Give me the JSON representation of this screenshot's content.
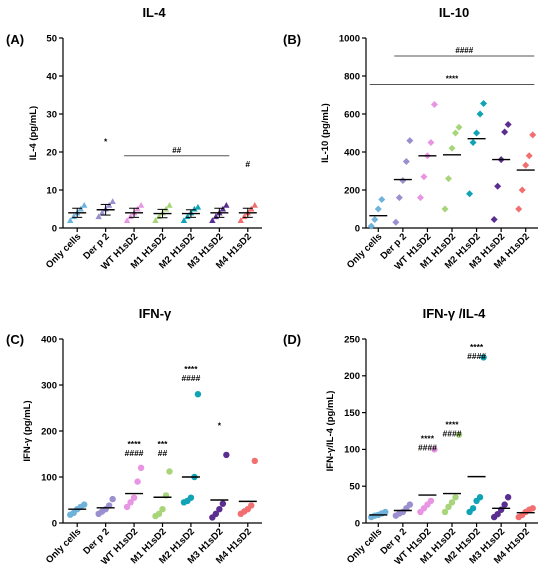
{
  "colors": {
    "Only cells": "#6fb2da",
    "Der p 2": "#9b8fd0",
    "WT H1sD2": "#e895e3",
    "M1 H1sD2": "#a8d57a",
    "M2 H1sD2": "#10a3b5",
    "M3 H1sD2": "#5a2d91",
    "M4 H1sD2": "#f26f6f"
  },
  "chart_data": [
    {
      "id": "A",
      "label": "(A)",
      "type": "scatter",
      "title": "IL-4",
      "ylabel": "IL-4 (pg/mL)",
      "ylim": [
        0,
        50
      ],
      "yticks": [
        0,
        10,
        20,
        30,
        40,
        50
      ],
      "categories": [
        "Only cells",
        "Der p 2",
        "WT H1sD2",
        "M1 H1sD2",
        "M2 H1sD2",
        "M3 H1sD2",
        "M4 H1sD2"
      ],
      "marker": "triangle",
      "error_bars": true,
      "groups": [
        {
          "name": "Only cells",
          "points": [
            2,
            3,
            4,
            5,
            6
          ],
          "mean": 4,
          "sem": 1.2
        },
        {
          "name": "Der p 2",
          "points": [
            3,
            4,
            5,
            6,
            7
          ],
          "mean": 4.8,
          "sem": 1.4
        },
        {
          "name": "WT H1sD2",
          "points": [
            2,
            3,
            4,
            5,
            6
          ],
          "mean": 4,
          "sem": 1.2
        },
        {
          "name": "M1 H1sD2",
          "points": [
            2,
            3,
            4,
            5,
            6
          ],
          "mean": 3.8,
          "sem": 1.1
        },
        {
          "name": "M2 H1sD2",
          "points": [
            2,
            3,
            4,
            5,
            5.5
          ],
          "mean": 3.8,
          "sem": 1
        },
        {
          "name": "M3 H1sD2",
          "points": [
            2,
            3,
            4,
            5,
            6
          ],
          "mean": 4,
          "sem": 1.2
        },
        {
          "name": "M4 H1sD2",
          "points": [
            2,
            3,
            4,
            5,
            6
          ],
          "mean": 4,
          "sem": 1.2
        }
      ],
      "annotations": [
        {
          "category": "Der p 2",
          "y": 22,
          "lines": [
            "*"
          ]
        },
        {
          "category": "M4 H1sD2",
          "y": 16,
          "lines": [
            "#"
          ]
        }
      ],
      "brackets": [
        {
          "from": "WT H1sD2",
          "to": "M3 H1sD2",
          "y": 19,
          "label": "##"
        }
      ]
    },
    {
      "id": "B",
      "label": "(B)",
      "type": "scatter",
      "title": "IL-10",
      "ylabel": "IL-10 (pg/mL)",
      "ylim": [
        0,
        1000
      ],
      "yticks": [
        0,
        200,
        400,
        600,
        800,
        1000
      ],
      "categories": [
        "Only cells",
        "Der p 2",
        "WT H1sD2",
        "M1 H1sD2",
        "M2 H1sD2",
        "M3 H1sD2",
        "M4 H1sD2"
      ],
      "marker": "diamond",
      "error_bars": false,
      "groups": [
        {
          "name": "Only cells",
          "points": [
            10,
            45,
            100,
            150
          ],
          "mean": 65
        },
        {
          "name": "Der p 2",
          "points": [
            30,
            160,
            250,
            350,
            460
          ],
          "mean": 255
        },
        {
          "name": "WT H1sD2",
          "points": [
            160,
            270,
            380,
            450,
            650
          ],
          "mean": 380
        },
        {
          "name": "M1 H1sD2",
          "points": [
            100,
            260,
            420,
            500,
            530
          ],
          "mean": 385
        },
        {
          "name": "M2 H1sD2",
          "points": [
            180,
            450,
            500,
            600,
            655
          ],
          "mean": 470
        },
        {
          "name": "M3 H1sD2",
          "points": [
            45,
            220,
            360,
            505,
            545
          ],
          "mean": 360
        },
        {
          "name": "M4 H1sD2",
          "points": [
            100,
            200,
            330,
            380,
            490
          ],
          "mean": 305
        }
      ],
      "annotations": [],
      "brackets": [
        {
          "from": "Der p 2",
          "to": "M4 H1sD2",
          "y": 905,
          "label": "####"
        },
        {
          "from": "Only cells",
          "to": "M4 H1sD2",
          "y": 755,
          "label": "****"
        }
      ]
    },
    {
      "id": "C",
      "label": "(C)",
      "type": "scatter",
      "title": "IFN-γ",
      "ylabel": "IFN-γ (pg/mL)",
      "ylim": [
        0,
        400
      ],
      "yticks": [
        0,
        100,
        200,
        300,
        400
      ],
      "categories": [
        "Only cells",
        "Der p 2",
        "WT H1sD2",
        "M1 H1sD2",
        "M2 H1sD2",
        "M3 H1sD2",
        "M4 H1sD2"
      ],
      "marker": "circle",
      "error_bars": false,
      "groups": [
        {
          "name": "Only cells",
          "points": [
            18,
            22,
            30,
            35,
            40
          ],
          "mean": 30
        },
        {
          "name": "Der p 2",
          "points": [
            20,
            25,
            30,
            38,
            52
          ],
          "mean": 33
        },
        {
          "name": "WT H1sD2",
          "points": [
            35,
            45,
            55,
            90,
            120
          ],
          "mean": 64
        },
        {
          "name": "M1 H1sD2",
          "points": [
            15,
            20,
            30,
            60,
            112
          ],
          "mean": 56
        },
        {
          "name": "M2 H1sD2",
          "points": [
            45,
            48,
            55,
            100,
            280
          ],
          "mean": 100
        },
        {
          "name": "M3 H1sD2",
          "points": [
            12,
            20,
            30,
            42,
            148
          ],
          "mean": 50
        },
        {
          "name": "M4 H1sD2",
          "points": [
            20,
            25,
            30,
            38,
            135
          ],
          "mean": 47
        }
      ],
      "annotations": [
        {
          "category": "WT H1sD2",
          "y": 165,
          "lines": [
            "****",
            "####"
          ]
        },
        {
          "category": "M1 H1sD2",
          "y": 165,
          "lines": [
            "***",
            "##"
          ]
        },
        {
          "category": "M2 H1sD2",
          "y": 328,
          "lines": [
            "****",
            "####"
          ]
        },
        {
          "category": "M3 H1sD2",
          "y": 205,
          "lines": [
            "*"
          ]
        }
      ],
      "brackets": []
    },
    {
      "id": "D",
      "label": "(D)",
      "type": "scatter",
      "title": "IFN-γ /IL-4",
      "ylabel": "IFN-γ/IL-4 (pg/mL)",
      "ylim": [
        0,
        250
      ],
      "yticks": [
        0,
        50,
        100,
        150,
        200,
        250
      ],
      "categories": [
        "Only cells",
        "Der p 2",
        "WT H1sD2",
        "M1 H1sD2",
        "M2 H1sD2",
        "M3 H1sD2",
        "M4 H1sD2"
      ],
      "marker": "circle",
      "error_bars": false,
      "groups": [
        {
          "name": "Only cells",
          "points": [
            8,
            10,
            11,
            13,
            15
          ],
          "mean": 11
        },
        {
          "name": "Der p 2",
          "points": [
            10,
            13,
            15,
            20,
            25
          ],
          "mean": 17
        },
        {
          "name": "WT H1sD2",
          "points": [
            15,
            20,
            25,
            30,
            100
          ],
          "mean": 38
        },
        {
          "name": "M1 H1sD2",
          "points": [
            15,
            22,
            28,
            35,
            120
          ],
          "mean": 40
        },
        {
          "name": "M2 H1sD2",
          "points": [
            15,
            20,
            30,
            35,
            225
          ],
          "mean": 63
        },
        {
          "name": "M3 H1sD2",
          "points": [
            8,
            12,
            18,
            25,
            35
          ],
          "mean": 20
        },
        {
          "name": "M4 H1sD2",
          "points": [
            8,
            11,
            15,
            18,
            20
          ],
          "mean": 14
        }
      ],
      "annotations": [
        {
          "category": "WT H1sD2",
          "y": 111,
          "lines": [
            "****",
            "####"
          ]
        },
        {
          "category": "M1 H1sD2",
          "y": 130,
          "lines": [
            "****",
            "####"
          ]
        },
        {
          "category": "M2 H1sD2",
          "y": 235,
          "lines": [
            "****",
            "####"
          ]
        }
      ],
      "brackets": []
    }
  ]
}
